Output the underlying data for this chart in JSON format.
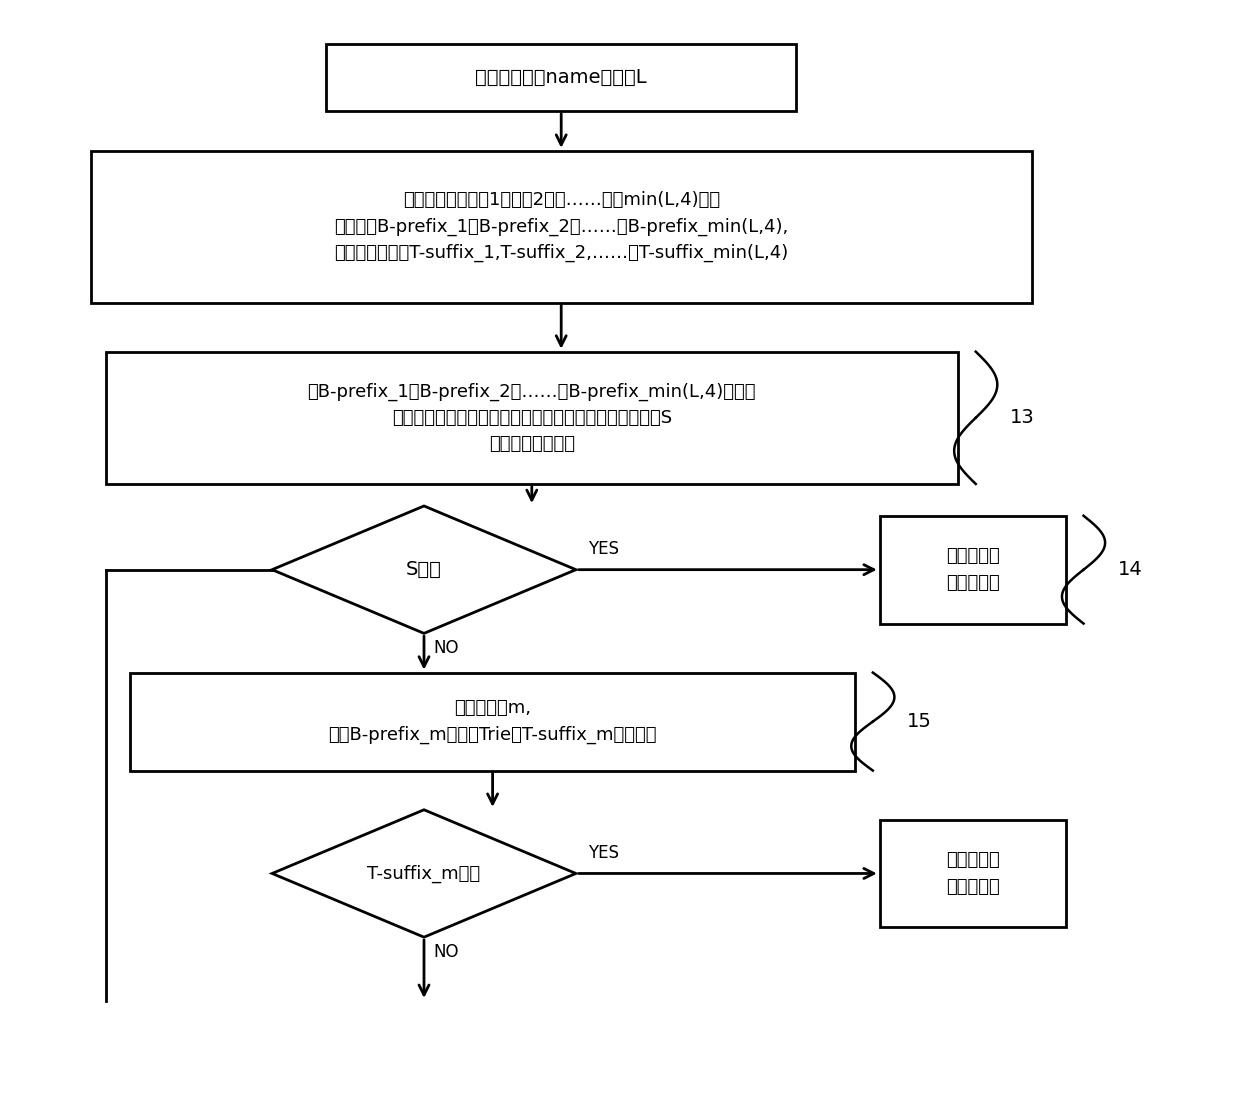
{
  "bg_color": "#ffffff",
  "box1_text": "计算请求名称name的层数L",
  "box2_line1": "截取请求名称的前1层，前2层，……，前min(L,4)层，",
  "box2_line2": "分别作为B-prefix_1，B-prefix_2，……，B-prefix_min(L,4),",
  "box2_line3": "对应剩余的作为T-suffix_1,T-suffix_2,……，T-suffix_min(L,4)",
  "box3_line1": "将B-prefix_1，B-prefix_2，……，B-prefix_min(L,4)并行的",
  "box3_line2": "在对应的布隆滤波器中查找，查找结果从大到小存储在栈S",
  "box3_line3": "中，栈顶元素最大",
  "diamond1_text": "S为空",
  "box4_line1": "从路由器默",
  "box4_line2": "认端口转发",
  "box5_line1": "取栈顶元素m,",
  "box5_line2": "查询B-prefix_m对应的Trie中T-suffix_m的存在性",
  "diamond2_text": "T-suffix_m存在",
  "box6_line1": "从对应路由",
  "box6_line2": "器端口转发",
  "label13": "13",
  "label14": "14",
  "label15": "15",
  "yes_label": "YES",
  "no_label": "NO"
}
